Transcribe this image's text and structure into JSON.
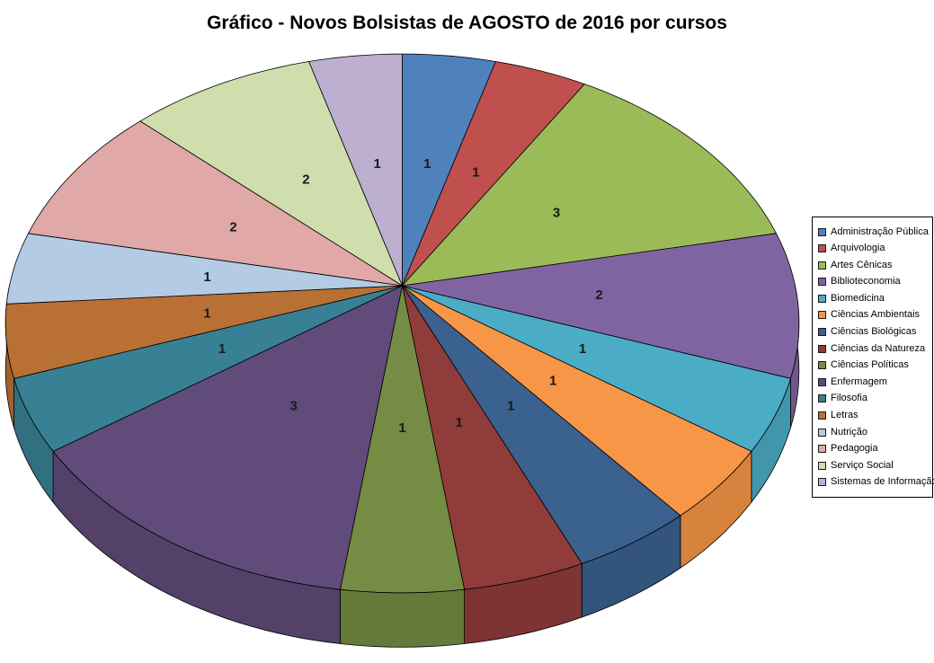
{
  "chart_data": {
    "type": "pie",
    "style": "3d-pie",
    "title": "Gráfico - Novos Bolsistas de AGOSTO de 2016 por cursos",
    "legend_position": "right",
    "direction": "clockwise",
    "start_angle_deg": 0,
    "total": 23,
    "data_labels_shown": true,
    "background_color": "#FFFFFF",
    "slice_border_color": "#000000",
    "label_color": "#1a1a1a",
    "categories": [
      "Administração Pública",
      "Arquivologia",
      "Artes Cênicas",
      "Biblioteconomia",
      "Biomedicina",
      "Ciências Ambientais",
      "Ciências Biológicas",
      "Ciências da Natureza",
      "Ciências Políticas",
      "Enfermagem",
      "Filosofia",
      "Letras",
      "Nutrição",
      "Pedagogia",
      "Serviço Social",
      "Sistemas de Informação"
    ],
    "values": [
      1,
      1,
      3,
      2,
      1,
      1,
      1,
      1,
      1,
      3,
      1,
      1,
      1,
      2,
      2,
      1
    ],
    "colors": [
      "#4F81BD",
      "#C0504D",
      "#9BBB59",
      "#8064A2",
      "#4BACC6",
      "#F79646",
      "#3B618E",
      "#903C3A",
      "#748C43",
      "#604B7A",
      "#388194",
      "#B97034",
      "#B3CBE5",
      "#E0A8A6",
      "#CFDEAC",
      "#BCAFD0"
    ]
  }
}
